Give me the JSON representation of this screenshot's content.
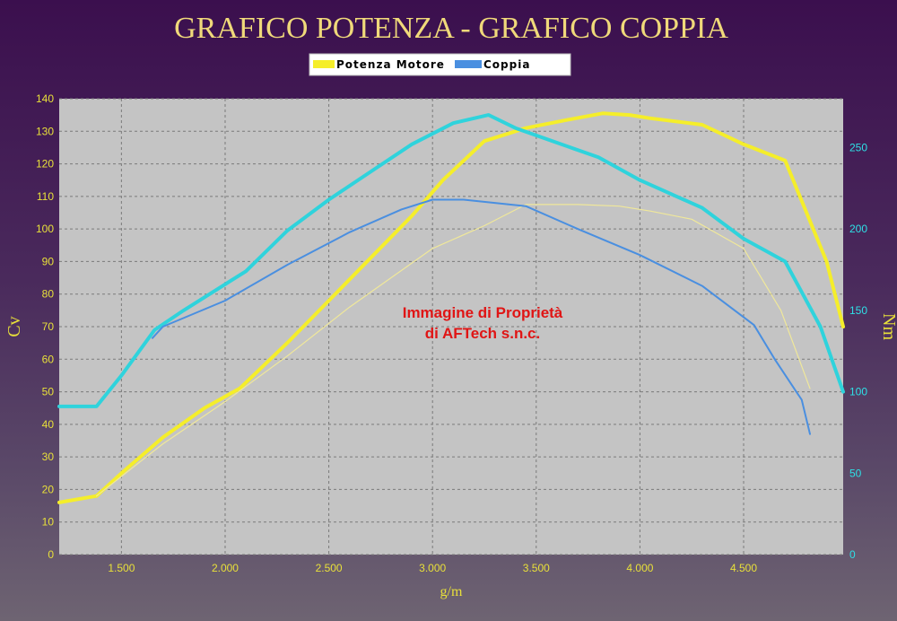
{
  "chart_data": {
    "type": "line",
    "title": "GRAFICO POTENZA - GRAFICO COPPIA",
    "xlabel": "g/m",
    "ylabel_left": "Cv",
    "ylabel_right": "Nm",
    "xlim": [
      1200,
      4980
    ],
    "ylim_left": [
      0,
      140
    ],
    "ylim_right": [
      0,
      280
    ],
    "x_ticks": [
      1500,
      2000,
      2500,
      3000,
      3500,
      4000,
      4500
    ],
    "x_tick_labels": [
      "1.500",
      "2.000",
      "2.500",
      "3.000",
      "3.500",
      "4.000",
      "4.500"
    ],
    "y_left_ticks": [
      0,
      10,
      20,
      30,
      40,
      50,
      60,
      70,
      80,
      90,
      100,
      110,
      120,
      130,
      140
    ],
    "y_right_ticks": [
      0,
      50,
      100,
      150,
      200,
      250
    ],
    "grid": true,
    "legend_position": "top-center",
    "legend": [
      {
        "label": "Potenza Motore",
        "color": "#f5ee2a"
      },
      {
        "label": "Coppia",
        "color": "#4a8fe0"
      }
    ],
    "annotation": [
      "Immagine di Proprietà",
      "di AFTech s.n.c."
    ],
    "colors": {
      "title": "#f0d97a",
      "axis_text_left": "#e8e03a",
      "axis_text_right": "#2ee0e6",
      "annotation": "#e01515",
      "plot_bg": "#c4c4c4",
      "grid": "#7a7a7a"
    },
    "series": [
      {
        "axis": "left",
        "color": "#f5ee2a",
        "width": 4,
        "x": [
          1200,
          1380,
          1500,
          1700,
          1900,
          2070,
          2300,
          2500,
          2700,
          2900,
          3050,
          3250,
          3450,
          3650,
          3820,
          3950,
          4050,
          4300,
          4500,
          4700,
          4900,
          4980
        ],
        "y": [
          16,
          18,
          25,
          36,
          45,
          51,
          65,
          78,
          91,
          104,
          115,
          127,
          131,
          133.5,
          135.5,
          135,
          134,
          132,
          126,
          121,
          90,
          70
        ]
      },
      {
        "axis": "right",
        "color": "#2fd3dc",
        "width": 4,
        "x": [
          1200,
          1380,
          1500,
          1660,
          1800,
          2000,
          2100,
          2300,
          2500,
          2700,
          2900,
          3100,
          3270,
          3400,
          3600,
          3800,
          4000,
          4300,
          4500,
          4700,
          4870,
          4980
        ],
        "y": [
          91,
          91,
          110,
          138,
          150,
          166,
          174,
          199,
          218,
          235,
          252,
          265,
          270,
          262,
          253,
          244,
          230,
          213,
          194,
          180,
          140,
          100
        ]
      },
      {
        "axis": "left",
        "color": "#f0e89a",
        "width": 1.2,
        "x": [
          1380,
          1500,
          1700,
          2000,
          2300,
          2600,
          3000,
          3250,
          3450,
          3700,
          3900,
          4050,
          4250,
          4500,
          4680,
          4820
        ],
        "y": [
          18,
          24,
          34,
          47,
          61,
          76,
          94,
          101,
          107.5,
          107.5,
          107,
          105.5,
          103,
          94,
          75,
          51
        ]
      },
      {
        "axis": "right",
        "color": "#4a8fe0",
        "width": 2,
        "x": [
          1650,
          1700,
          2000,
          2300,
          2600,
          2850,
          3000,
          3150,
          3300,
          3450,
          3700,
          4000,
          4300,
          4550,
          4650,
          4780,
          4820
        ],
        "y": [
          133,
          140,
          156,
          178,
          198,
          212,
          218,
          218,
          216,
          214,
          200,
          184,
          165,
          141,
          120,
          95,
          74
        ]
      }
    ]
  }
}
